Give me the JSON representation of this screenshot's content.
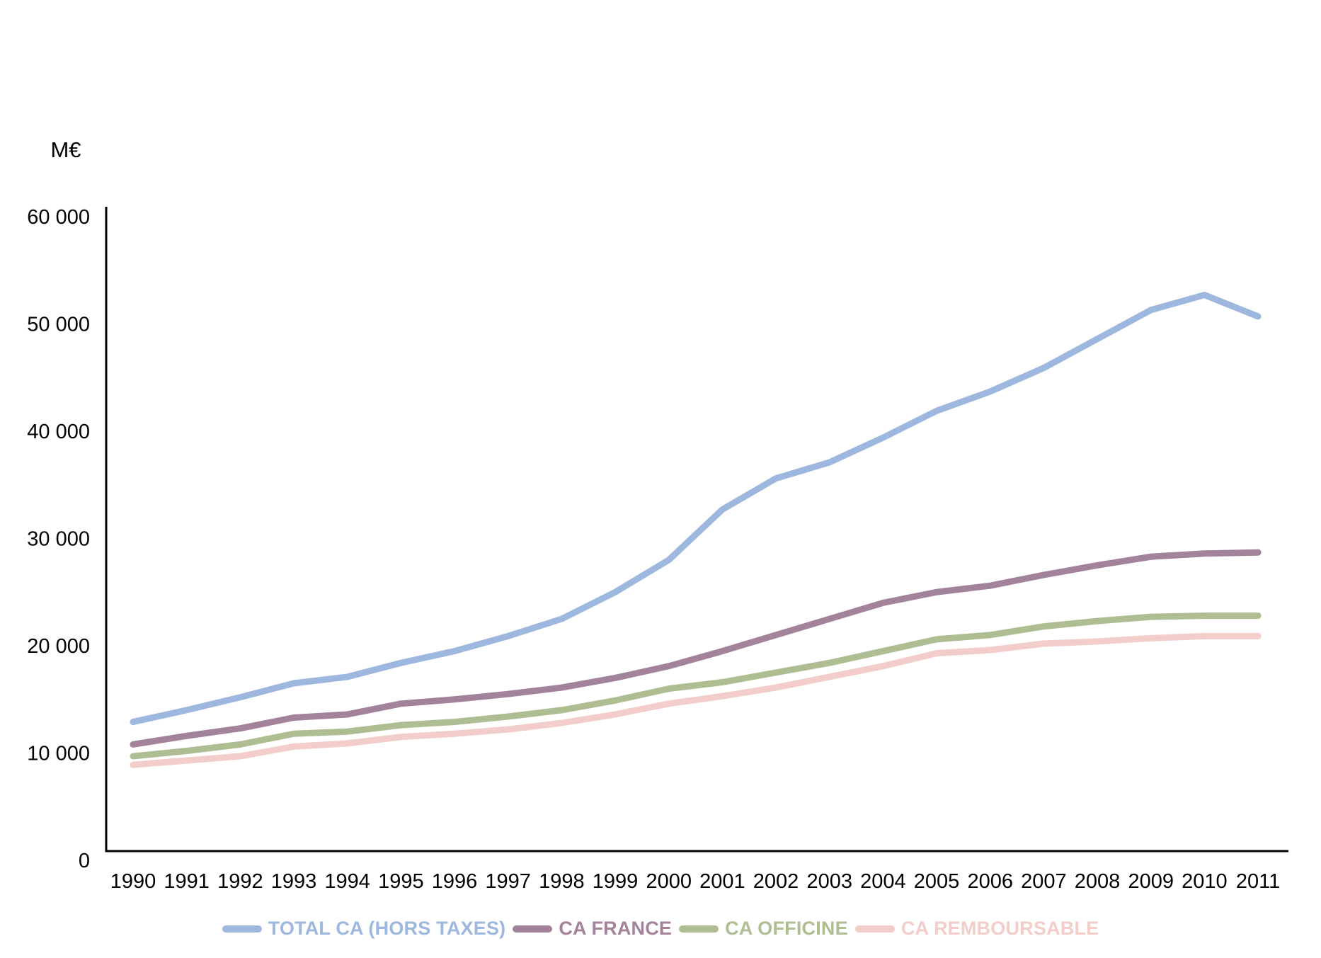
{
  "chart_data": {
    "type": "line",
    "title": "",
    "ylabel": "M€",
    "xlabel": "",
    "grid": false,
    "legend_position": "bottom",
    "axis_color": "#000000",
    "ylim": [
      0,
      60000
    ],
    "ytick_step": 10000,
    "ytick_labels": [
      "0",
      "10 000",
      "20 000",
      "30 000",
      "40 000",
      "50 000",
      "60 000"
    ],
    "x": [
      1990,
      1991,
      1992,
      1993,
      1994,
      1995,
      1996,
      1997,
      1998,
      1999,
      2000,
      2001,
      2002,
      2003,
      2004,
      2005,
      2006,
      2007,
      2008,
      2009,
      2010,
      2011
    ],
    "series": [
      {
        "name": "TOTAL CA (HORS TAXES)",
        "color": "#9DB7DE",
        "values": [
          12900,
          14000,
          15200,
          16500,
          17100,
          18400,
          19500,
          20900,
          22500,
          25000,
          28000,
          32700,
          35600,
          37100,
          39400,
          41900,
          43700,
          45900,
          48600,
          51300,
          52700,
          50700
        ]
      },
      {
        "name": "CA FRANCE",
        "color": "#A3839B",
        "values": [
          10800,
          11600,
          12300,
          13300,
          13600,
          14600,
          15000,
          15500,
          16100,
          17000,
          18100,
          19500,
          21000,
          22500,
          24000,
          25000,
          25600,
          26600,
          27500,
          28300,
          28600,
          28700
        ]
      },
      {
        "name": "CA OFFICINE",
        "color": "#AFBD92",
        "values": [
          9700,
          10200,
          10800,
          11800,
          12000,
          12600,
          12900,
          13400,
          14000,
          14900,
          16000,
          16600,
          17500,
          18400,
          19500,
          20600,
          21000,
          21800,
          22300,
          22700,
          22800,
          22800
        ]
      },
      {
        "name": "CA REMBOURSABLE",
        "color": "#F2CDC9",
        "values": [
          8900,
          9300,
          9700,
          10600,
          10900,
          11500,
          11800,
          12200,
          12800,
          13600,
          14600,
          15300,
          16100,
          17100,
          18100,
          19300,
          19600,
          20200,
          20400,
          20700,
          20900,
          20900
        ]
      }
    ]
  }
}
